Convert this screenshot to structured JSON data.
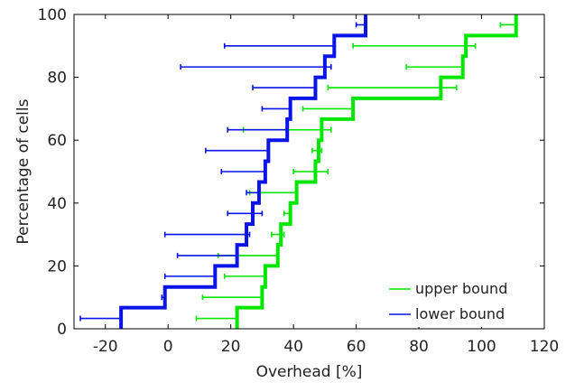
{
  "chart_data": {
    "type": "line",
    "title": "",
    "xlabel": "Overhead [%]",
    "ylabel": "Percentage of cells",
    "xlim": [
      -30,
      120
    ],
    "ylim": [
      0,
      100
    ],
    "xticks": [
      -20,
      0,
      20,
      40,
      60,
      80,
      100,
      120
    ],
    "yticks": [
      0,
      20,
      40,
      60,
      80,
      100
    ],
    "grid": false,
    "legend_position": "bottom-right",
    "series": [
      {
        "name": "upper bound",
        "color": "#00e600",
        "steps": [
          {
            "x": 22,
            "y0": 0,
            "y1": 6.7
          },
          {
            "x": 30,
            "y0": 6.7,
            "y1": 13.3
          },
          {
            "x": 31,
            "y0": 13.3,
            "y1": 20
          },
          {
            "x": 35,
            "y0": 20,
            "y1": 26.7
          },
          {
            "x": 36,
            "y0": 26.7,
            "y1": 33.3
          },
          {
            "x": 39,
            "y0": 33.3,
            "y1": 40
          },
          {
            "x": 41,
            "y0": 40,
            "y1": 46.7
          },
          {
            "x": 47,
            "y0": 46.7,
            "y1": 53.3
          },
          {
            "x": 48,
            "y0": 53.3,
            "y1": 60
          },
          {
            "x": 49,
            "y0": 60,
            "y1": 66.7
          },
          {
            "x": 59,
            "y0": 66.7,
            "y1": 73.3
          },
          {
            "x": 87,
            "y0": 73.3,
            "y1": 80
          },
          {
            "x": 94,
            "y0": 80,
            "y1": 86.7
          },
          {
            "x": 95,
            "y0": 86.7,
            "y1": 93.3
          },
          {
            "x": 111,
            "y0": 93.3,
            "y1": 100
          }
        ],
        "error_bars": [
          {
            "y": 3.3,
            "lo": 9,
            "hi": 22
          },
          {
            "y": 10,
            "lo": 11,
            "hi": 30
          },
          {
            "y": 16.7,
            "lo": 18,
            "hi": 31
          },
          {
            "y": 23.3,
            "lo": 16,
            "hi": 35
          },
          {
            "x_lo": 33,
            "y": 30,
            "lo": 33,
            "hi": 37
          },
          {
            "y": 36.7,
            "lo": 37,
            "hi": 39
          },
          {
            "y": 43.3,
            "lo": 26,
            "hi": 41
          },
          {
            "y": 50,
            "lo": 40,
            "hi": 51
          },
          {
            "y": 56.7,
            "lo": 46,
            "hi": 49
          },
          {
            "y": 63.3,
            "lo": 24,
            "hi": 52
          },
          {
            "y": 70,
            "lo": 43,
            "hi": 59
          },
          {
            "y": 76.7,
            "lo": 51,
            "hi": 92
          },
          {
            "y": 83.3,
            "lo": 76,
            "hi": 94
          },
          {
            "y": 90,
            "lo": 59,
            "hi": 98
          },
          {
            "y": 96.7,
            "lo": 106,
            "hi": 111
          }
        ]
      },
      {
        "name": "lower bound",
        "color": "#0a14e6",
        "steps": [
          {
            "x": -15,
            "y0": 0,
            "y1": 6.7
          },
          {
            "x": -1,
            "y0": 6.7,
            "y1": 13.3
          },
          {
            "x": 15,
            "y0": 13.3,
            "y1": 20
          },
          {
            "x": 22,
            "y0": 20,
            "y1": 26.7
          },
          {
            "x": 25,
            "y0": 26.7,
            "y1": 33.3
          },
          {
            "x": 27,
            "y0": 33.3,
            "y1": 40
          },
          {
            "x": 29,
            "y0": 40,
            "y1": 46.7
          },
          {
            "x": 31,
            "y0": 46.7,
            "y1": 53.3
          },
          {
            "x": 32,
            "y0": 53.3,
            "y1": 60
          },
          {
            "x": 38,
            "y0": 60,
            "y1": 66.7
          },
          {
            "x": 39,
            "y0": 66.7,
            "y1": 73.3
          },
          {
            "x": 47,
            "y0": 73.3,
            "y1": 80
          },
          {
            "x": 50,
            "y0": 80,
            "y1": 86.7
          },
          {
            "x": 53,
            "y0": 86.7,
            "y1": 93.3
          },
          {
            "x": 63,
            "y0": 93.3,
            "y1": 100
          }
        ],
        "error_bars": [
          {
            "y": 3.3,
            "lo": -28,
            "hi": -15
          },
          {
            "y": 10,
            "lo": -2,
            "hi": -1
          },
          {
            "y": 16.7,
            "lo": -1,
            "hi": 15
          },
          {
            "y": 23.3,
            "lo": 3,
            "hi": 22
          },
          {
            "y": 30,
            "lo": -1,
            "hi": 26
          },
          {
            "y": 36.7,
            "lo": 19,
            "hi": 30
          },
          {
            "y": 43.3,
            "lo": 25,
            "hi": 29
          },
          {
            "y": 50,
            "lo": 17,
            "hi": 31
          },
          {
            "y": 56.7,
            "lo": 12,
            "hi": 32
          },
          {
            "y": 63.3,
            "lo": 19,
            "hi": 38
          },
          {
            "y": 70,
            "lo": 30,
            "hi": 39
          },
          {
            "y": 76.7,
            "lo": 27,
            "hi": 47
          },
          {
            "y": 83.3,
            "lo": 4,
            "hi": 52
          },
          {
            "y": 90,
            "lo": 18,
            "hi": 53
          },
          {
            "y": 96.7,
            "lo": 60,
            "hi": 63
          }
        ]
      }
    ]
  }
}
